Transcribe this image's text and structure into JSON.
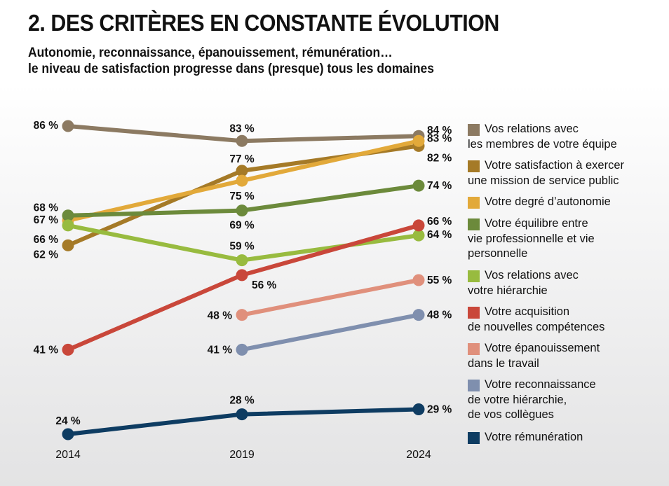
{
  "title": "2. DES CRITÈRES EN CONSTANTE ÉVOLUTION",
  "subtitle_line1": "Autonomie, reconnaissance, épanouissement, rémunération…",
  "subtitle_line2": "le niveau de satisfaction progresse dans (presque) tous les domaines",
  "chart_data": {
    "type": "line",
    "x": [
      "2014",
      "2019",
      "2024"
    ],
    "ylim": [
      20,
      90
    ],
    "grid": false,
    "legend_placement": "right",
    "series": [
      {
        "name": "Vos relations avec\nles membres de votre équipe",
        "color": "#8c7a62",
        "values": [
          86,
          83,
          84
        ],
        "labels": [
          "86 %",
          "83 %",
          "84 %"
        ]
      },
      {
        "name": "Votre satisfaction à exercer\nune mission de service public",
        "color": "#a57a27",
        "values": [
          62,
          77,
          82
        ],
        "labels": [
          "62 %",
          "77 %",
          "82 %"
        ]
      },
      {
        "name": "Votre degré d’autonomie",
        "color": "#e2a93a",
        "values": [
          67,
          75,
          83
        ],
        "labels": [
          "67 %",
          "75 %",
          "83 %"
        ]
      },
      {
        "name": "Votre équilibre entre\nvie professionnelle et vie\npersonnelle",
        "color": "#6c8a3b",
        "values": [
          68,
          69,
          74
        ],
        "labels": [
          "68 %",
          "69 %",
          "74 %"
        ]
      },
      {
        "name": "Vos relations avec\nvotre hiérarchie",
        "color": "#98bb3f",
        "values": [
          66,
          59,
          64
        ],
        "labels": [
          "66 %",
          "59 %",
          "64 %"
        ]
      },
      {
        "name": "Votre acquisition\nde nouvelles compétences",
        "color": "#c9473a",
        "values": [
          41,
          56,
          66
        ],
        "labels": [
          "41 %",
          "56 %",
          "66 %"
        ]
      },
      {
        "name": "Votre épanouissement\ndans le travail",
        "color": "#e0907c",
        "values": [
          null,
          48,
          55
        ],
        "labels": [
          null,
          "48 %",
          "55 %"
        ]
      },
      {
        "name": "Votre reconnaissance\nde votre hiérarchie,\nde vos collègues",
        "color": "#7f8fae",
        "values": [
          null,
          41,
          48
        ],
        "labels": [
          null,
          "41 %",
          "48 %"
        ]
      },
      {
        "name": "Votre rémunération",
        "color": "#0e3c62",
        "values": [
          24,
          28,
          29
        ],
        "labels": [
          "24 %",
          "28 %",
          "29 %"
        ]
      }
    ]
  }
}
